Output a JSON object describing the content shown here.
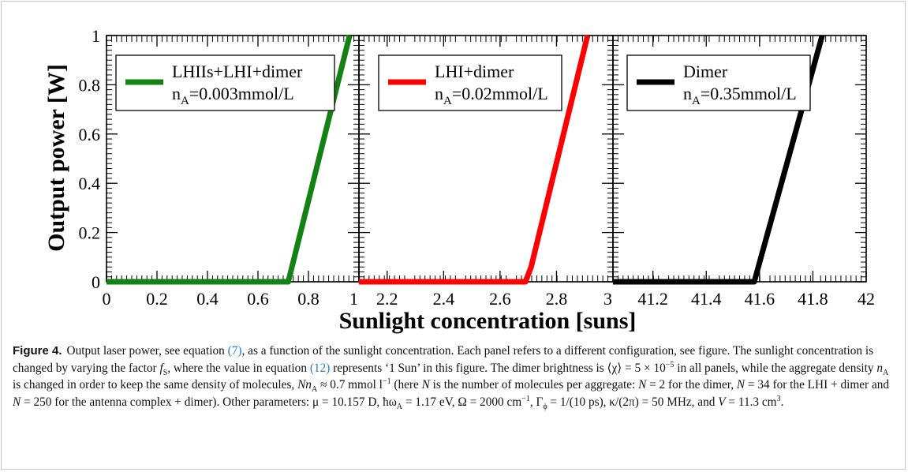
{
  "figure": {
    "ylabel": "Output power [W]",
    "xlabel": "Sunlight concentration [suns]",
    "caption": {
      "label": "Figure 4.",
      "p1": "Output laser power, see equation ",
      "eq1": "(7)",
      "p2": ", as a function of the sunlight concentration. Each panel refers to a different configuration, see figure. The sunlight concentration is changed by varying the factor ",
      "fs": "f",
      "fs_sub": "S",
      "p3": ", where the value in equation ",
      "eq2": "(12)",
      "p4": " represents ‘1 Sun’ in this figure. The dimer brightness is ⟨χ⟩ = 5 × 10",
      "exp1": "−5",
      "p5": " in all panels, while the aggregate density ",
      "nA": "n",
      "nA_sub": "A",
      "p6": " is changed in order to keep the same density of molecules, ",
      "NnA": "Nn",
      "NnA_sub": "A",
      "p7": " ≈ 0.7 mmol l",
      "exp2": "−1",
      "p8": " (here ",
      "N1": "N",
      "p9": " is the number of molecules per aggregate: ",
      "N2": "N",
      "p10": " = 2 for the dimer, ",
      "N3": "N",
      "p11": " = 34 for the LHI + dimer and ",
      "N4": "N",
      "p12": " = 250 for the antenna complex + dimer). Other parameters: μ = 10.157 D, ħω",
      "omega_sub": "A",
      "p13": " = 1.17 eV, Ω = 2000 cm",
      "exp3": "−1",
      "p14": ", Γ",
      "gamma_sub": "ϕ",
      "p15": " = 1/(10 ps), κ/(2π) = 50 MHz, and ",
      "V": "V",
      "p16": " = 11.3 cm",
      "exp4": "3",
      "p17": "."
    }
  },
  "chart_data": [
    {
      "type": "line",
      "panel": "left",
      "xlim": [
        0,
        1
      ],
      "ylim": [
        0,
        1
      ],
      "xticks": [
        "0",
        "0.2",
        "0.4",
        "0.6",
        "0.8",
        "1"
      ],
      "yticks": [
        "0",
        "0.2",
        "0.4",
        "0.6",
        "0.8",
        "1"
      ],
      "legend": {
        "line1": "LHIIs+LHI+dimer",
        "line2_main": "n",
        "line2_sub": "A",
        "line2_rest": "=0.003mmol/L",
        "placement": "top-left"
      },
      "series": [
        {
          "color": "#138113",
          "x": [
            0,
            0.72,
            0.963
          ],
          "y": [
            0,
            0,
            1
          ]
        }
      ]
    },
    {
      "type": "line",
      "panel": "middle",
      "xlim": [
        2.1,
        3
      ],
      "ylim": [
        0,
        1
      ],
      "xticks": [
        "2.2",
        "2.4",
        "2.6",
        "2.8",
        "3"
      ],
      "legend": {
        "line1": "LHI+dimer",
        "line2_main": "n",
        "line2_sub": "A",
        "line2_rest": "=0.02mmol/L",
        "placement": "top-left"
      },
      "series": [
        {
          "color": "#ff0000",
          "x": [
            2.1,
            2.69,
            2.71,
            2.91
          ],
          "y": [
            0,
            0,
            0.06,
            1
          ]
        }
      ]
    },
    {
      "type": "line",
      "panel": "right",
      "xlim": [
        41.05,
        42
      ],
      "ylim": [
        0,
        1
      ],
      "xticks": [
        "41.2",
        "41.4",
        "41.6",
        "41.8",
        "42"
      ],
      "legend": {
        "line1": "Dimer",
        "line2_main": "n",
        "line2_sub": "A",
        "line2_rest": "=0.35mmol/L",
        "placement": "top-left"
      },
      "series": [
        {
          "color": "#000000",
          "x": [
            41.05,
            41.58,
            41.835
          ],
          "y": [
            0,
            0,
            1
          ]
        }
      ]
    }
  ]
}
